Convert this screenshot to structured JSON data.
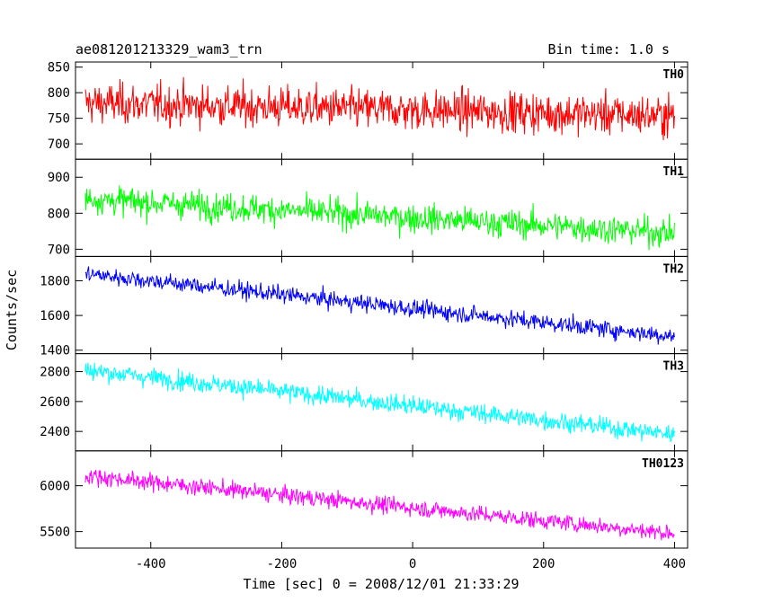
{
  "chart_data": {
    "type": "line",
    "title": "ae081201213329_wam3_trn",
    "subtitle": "Bin time: 1.0 s",
    "xlabel": "Time [sec] 0 = 2008/12/01 21:33:29",
    "ylabel": "Counts/sec",
    "xlim": [
      -515,
      420
    ],
    "xticks": [
      -400,
      -200,
      0,
      200,
      400
    ],
    "panels": [
      {
        "name": "TH0",
        "color": "#ff0000",
        "ylim": [
          670,
          860
        ],
        "yticks": [
          700,
          750,
          800,
          850
        ],
        "x": [
          -500,
          400
        ],
        "y_start": 780,
        "y_end": 755,
        "noise": 28
      },
      {
        "name": "TH1",
        "color": "#00ff00",
        "ylim": [
          680,
          950
        ],
        "yticks": [
          700,
          800,
          900
        ],
        "x": [
          -500,
          400
        ],
        "y_start": 840,
        "y_end": 745,
        "noise": 28
      },
      {
        "name": "TH2",
        "color": "#0000ff",
        "ylim": [
          1380,
          1940
        ],
        "yticks": [
          1400,
          1600,
          1800
        ],
        "x": [
          -500,
          400
        ],
        "y_start": 1840,
        "y_end": 1480,
        "noise": 35
      },
      {
        "name": "TH3",
        "color": "#00ffff",
        "ylim": [
          2270,
          2920
        ],
        "yticks": [
          2400,
          2600,
          2800
        ],
        "x": [
          -500,
          400
        ],
        "y_start": 2810,
        "y_end": 2380,
        "noise": 45
      },
      {
        "name": "TH0123",
        "color": "#ff00ff",
        "ylim": [
          5320,
          6380
        ],
        "yticks": [
          5500,
          6000
        ],
        "x": [
          -500,
          400
        ],
        "y_start": 6110,
        "y_end": 5480,
        "noise": 65
      }
    ]
  }
}
